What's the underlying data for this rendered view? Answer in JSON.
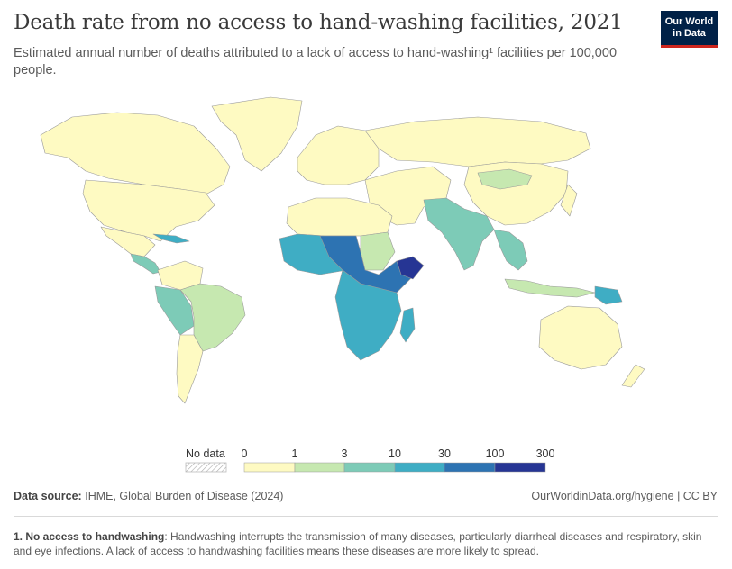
{
  "header": {
    "title": "Death rate from no access to hand-washing facilities, 2021",
    "subtitle": "Estimated annual number of deaths attributed to a lack of access to hand-washing¹ facilities per 100,000 people."
  },
  "logo": {
    "line1": "Our World",
    "line2": "in Data",
    "bg_color": "#002147",
    "accent_color": "#ce261e"
  },
  "legend": {
    "no_data_label": "No data",
    "ticks": [
      "0",
      "1",
      "3",
      "10",
      "30",
      "100",
      "300"
    ],
    "bin_colors": [
      "#fefac2",
      "#c6e8b0",
      "#7dcbb7",
      "#3fadc4",
      "#2d73b2",
      "#263594"
    ]
  },
  "map": {
    "land_default_color": "#fefac2",
    "ocean_color": "#ffffff",
    "border_color": "#9a9a9a",
    "region_levels": [
      {
        "region": "Sub-Saharan Africa (central/east)",
        "bin": "100-300"
      },
      {
        "region": "Sahel",
        "bin": "30-100"
      },
      {
        "region": "Southern Africa",
        "bin": "10-30"
      },
      {
        "region": "South Asia",
        "bin": "3-10"
      },
      {
        "region": "Andean South America",
        "bin": "3-10"
      },
      {
        "region": "Brazil",
        "bin": "1-3"
      },
      {
        "region": "Papua New Guinea",
        "bin": "10-30"
      },
      {
        "region": "Madagascar",
        "bin": "10-30"
      }
    ]
  },
  "footer": {
    "source_label": "Data source:",
    "source_text": "IHME, Global Burden of Disease (2024)",
    "url_text": "OurWorldinData.org/hygiene | CC BY"
  },
  "note": {
    "bold": "1. No access to handwashing",
    "text": ": Handwashing interrupts the transmission of many diseases, particularly diarrheal diseases and respiratory, skin and eye infections. A lack of access to handwashing facilities means these diseases are more likely to spread."
  }
}
